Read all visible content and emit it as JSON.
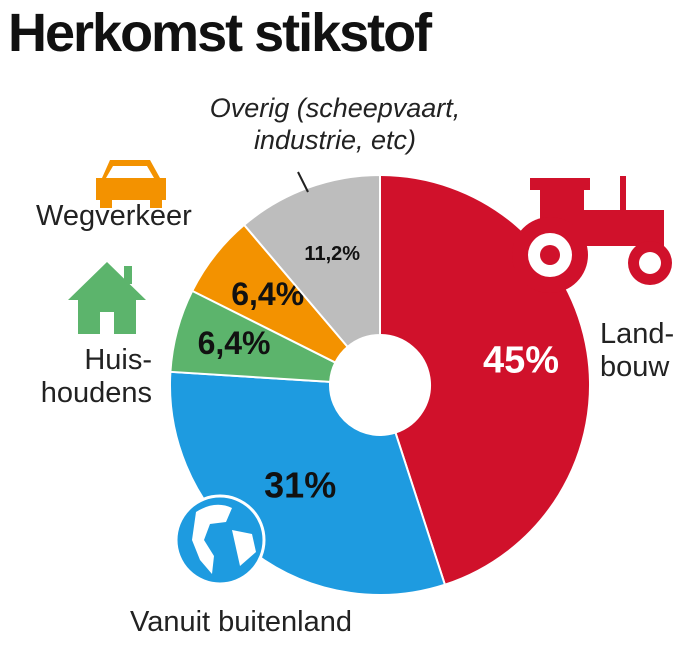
{
  "chart_data": {
    "type": "pie",
    "title": "Herkomst stikstof",
    "categories": [
      "Land-\nbouw",
      "Vanuit buitenland",
      "Huis-\nhoudens",
      "Wegverkeer",
      "Overig (scheepvaart,\nindustrie, etc)"
    ],
    "values": [
      45,
      31,
      6.4,
      6.4,
      11.2
    ],
    "value_labels": [
      "45%",
      "31%",
      "6,4%",
      "6,4%",
      "11,2%"
    ],
    "colors": [
      "#d0112b",
      "#1e9be0",
      "#5cb46c",
      "#f39200",
      "#bdbdbd"
    ]
  }
}
